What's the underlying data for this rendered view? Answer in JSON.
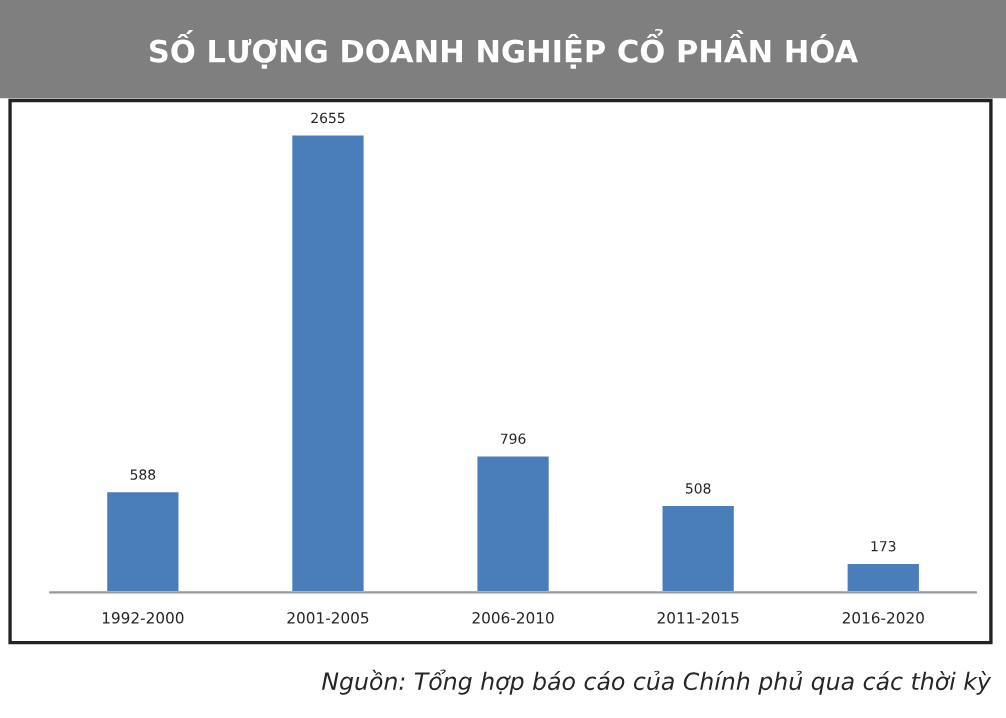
{
  "chart_data": {
    "type": "bar",
    "title": "SỐ LƯỢNG DOANH NGHIỆP CỔ PHẦN HÓA",
    "categories": [
      "1992-2000",
      "2001-2005",
      "2006-2010",
      "2011-2015",
      "2016-2020"
    ],
    "values": [
      588,
      2655,
      796,
      508,
      173
    ],
    "color": "#4a7ebb",
    "data_labels": true,
    "grid": false,
    "annotations": [
      "Nguồn: Tổng hợp báo cáo của Chính phủ qua các thời kỳ"
    ]
  }
}
